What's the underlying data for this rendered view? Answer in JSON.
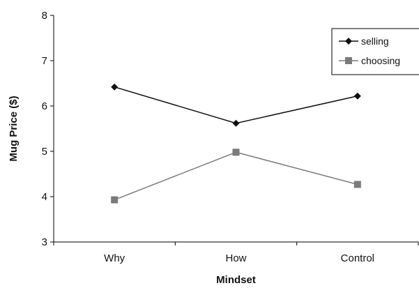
{
  "chart_data": {
    "type": "line",
    "xlabel": "Mindset",
    "ylabel": "Mug Price ($)",
    "categories": [
      "Why",
      "How",
      "Control"
    ],
    "ylim": [
      3,
      8
    ],
    "yticks": [
      "3",
      "4",
      "5",
      "6",
      "7",
      "8"
    ],
    "grid": false,
    "legend_position": "top-right",
    "series": [
      {
        "name": "selling",
        "values": [
          6.42,
          5.62,
          6.22
        ],
        "color": "#111111",
        "marker": "diamond"
      },
      {
        "name": "choosing",
        "values": [
          3.93,
          4.98,
          4.27
        ],
        "color": "#7a7a7a",
        "marker": "square"
      }
    ]
  }
}
